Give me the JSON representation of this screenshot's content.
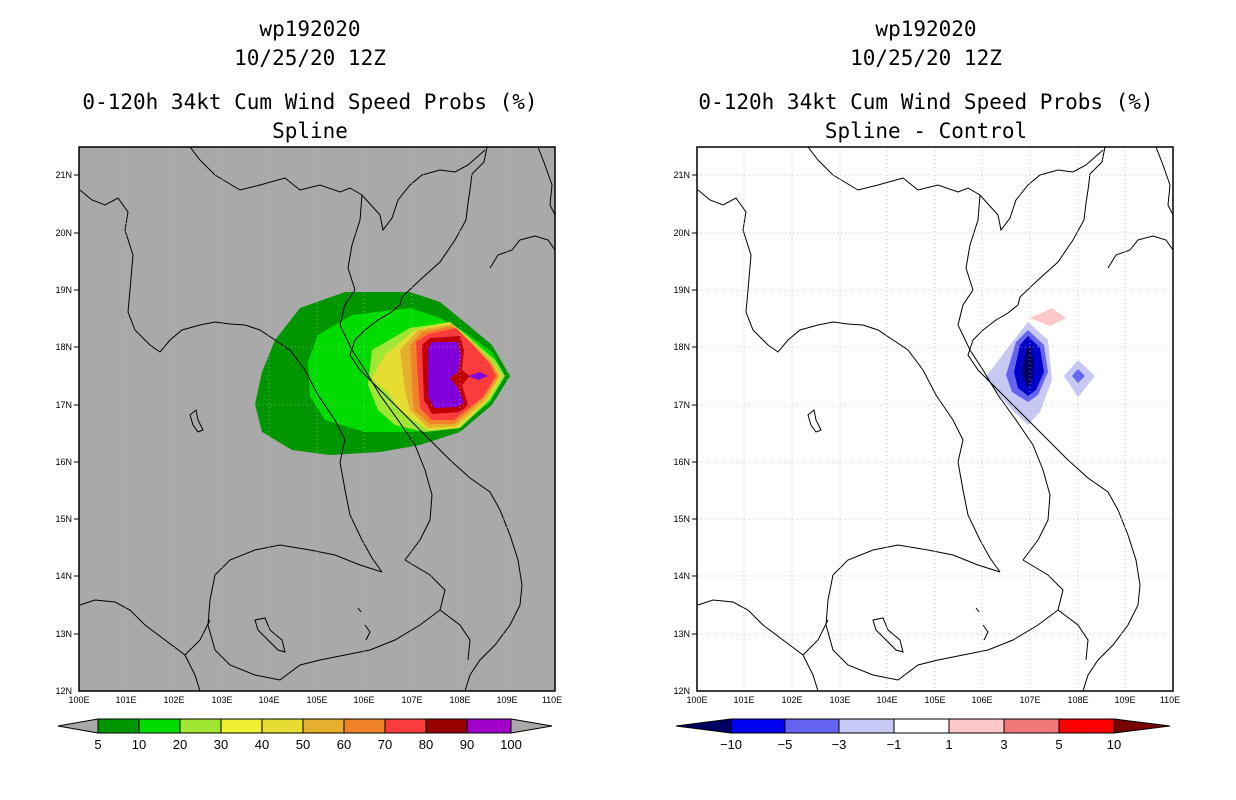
{
  "left_panel": {
    "storm_id": "wp192020",
    "date": "10/25/20 12Z",
    "product": "0-120h 34kt Cum Wind Speed Probs (%)",
    "subtitle": "Spline",
    "background_color": "#a9a9a9",
    "lat_labels": [
      "21N",
      "20N",
      "19N",
      "18N",
      "17N",
      "16N",
      "15N",
      "14N",
      "13N",
      "12N"
    ],
    "lon_labels": [
      "100E",
      "101E",
      "102E",
      "103E",
      "104E",
      "105E",
      "106E",
      "107E",
      "108E",
      "109E",
      "110E"
    ],
    "colorbar": {
      "labels": [
        "5",
        "10",
        "20",
        "30",
        "40",
        "50",
        "60",
        "70",
        "80",
        "90",
        "100"
      ],
      "colors": [
        "#009600",
        "#00dc00",
        "#a0e632",
        "#e6dc32",
        "#e6af2d",
        "#f08228",
        "#fa3c3c",
        "#c00000",
        "#a000c8",
        "#8200dc"
      ]
    }
  },
  "right_panel": {
    "storm_id": "wp192020",
    "date": "10/25/20 12Z",
    "product": "0-120h 34kt Cum Wind Speed Probs (%)",
    "subtitle": "Spline - Control",
    "background_color": "#ffffff",
    "lat_labels": [
      "21N",
      "20N",
      "19N",
      "18N",
      "17N",
      "16N",
      "15N",
      "14N",
      "13N",
      "12N"
    ],
    "lon_labels": [
      "100E",
      "101E",
      "102E",
      "103E",
      "104E",
      "105E",
      "106E",
      "107E",
      "108E",
      "109E",
      "110E"
    ],
    "colorbar": {
      "labels": [
        "−10",
        "−5",
        "−3",
        "−1",
        "1",
        "3",
        "5",
        "10"
      ],
      "colors": [
        "#0000c8",
        "#6464f0",
        "#c8c8f5",
        "#ffffff",
        "#ffc8c8",
        "#f07878",
        "#ff0000"
      ]
    }
  }
}
